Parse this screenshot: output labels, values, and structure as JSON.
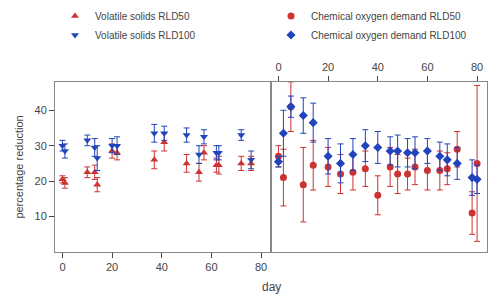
{
  "chart_data": [
    {
      "type": "scatter",
      "ylabel": "percentage reduction",
      "xlabel": "day",
      "xlim": [
        -3,
        84
      ],
      "ylim": [
        0,
        48
      ],
      "xticks": [
        0,
        20,
        40,
        60,
        80
      ],
      "yticks": [
        10,
        20,
        30,
        40
      ],
      "grid": false,
      "legend": "upper left",
      "series": [
        {
          "name": "Volatile solids RLD50",
          "color": "#cc3333",
          "marker": "triangle-up",
          "x": [
            0,
            1,
            10,
            13,
            14,
            20,
            22,
            37,
            41,
            50,
            55,
            57,
            62,
            63,
            72,
            76
          ],
          "values": [
            20.5,
            19.5,
            22.5,
            22.5,
            19.0,
            28.5,
            28.0,
            26.0,
            31.0,
            25.0,
            22.5,
            28.0,
            24.5,
            24.5,
            25.0,
            25.0
          ],
          "error": [
            1.0,
            1.5,
            1.5,
            2.0,
            2.0,
            2.0,
            2.0,
            2.5,
            2.5,
            2.5,
            2.5,
            2.0,
            2.0,
            2.5,
            2.0,
            2.0
          ]
        },
        {
          "name": "Volatile solids RLD100",
          "color": "#2244bb",
          "marker": "triangle-down",
          "x": [
            0,
            1,
            10,
            13,
            14,
            20,
            22,
            37,
            41,
            50,
            55,
            57,
            62,
            63,
            72,
            76
          ],
          "values": [
            30.0,
            28.5,
            31.5,
            29.5,
            26.5,
            30.0,
            30.0,
            33.5,
            33.5,
            33.0,
            27.5,
            32.5,
            28.0,
            28.0,
            33.0,
            26.0
          ],
          "error": [
            1.5,
            2.0,
            1.5,
            2.5,
            3.5,
            2.0,
            2.5,
            2.5,
            2.0,
            2.0,
            2.5,
            2.0,
            2.0,
            2.0,
            1.5,
            2.5
          ]
        }
      ]
    },
    {
      "type": "scatter",
      "xlim": [
        -3,
        84
      ],
      "ylim": [
        0,
        48
      ],
      "xticks": [
        0,
        20,
        40,
        60,
        80
      ],
      "yticks": [
        10,
        20,
        30,
        40
      ],
      "grid": false,
      "tick_labels": "x",
      "series": [
        {
          "name": "Chemical oxygen demand RLD50",
          "color": "#cc3333",
          "marker": "circle",
          "x": [
            0,
            2,
            5,
            10,
            14,
            20,
            25,
            30,
            35,
            40,
            45,
            48,
            52,
            55,
            60,
            65,
            68,
            72,
            78,
            80
          ],
          "values": [
            27.0,
            21.0,
            41.0,
            19.0,
            24.5,
            24.0,
            22.0,
            22.5,
            23.5,
            16.0,
            24.0,
            22.0,
            22.0,
            24.0,
            23.0,
            23.0,
            23.5,
            29.0,
            11.0,
            25.0
          ],
          "error": [
            3.0,
            8.0,
            7.0,
            10.5,
            7.0,
            5.5,
            5.5,
            5.0,
            5.0,
            5.5,
            5.5,
            5.5,
            4.5,
            5.0,
            5.5,
            5.5,
            4.5,
            5.0,
            6.0,
            22.0
          ]
        },
        {
          "name": "Chemical oxygen demand RLD100",
          "color": "#2244bb",
          "marker": "diamond",
          "x": [
            0,
            2,
            5,
            10,
            14,
            20,
            25,
            30,
            35,
            40,
            45,
            48,
            52,
            55,
            60,
            65,
            68,
            72,
            78,
            80
          ],
          "values": [
            25.5,
            33.5,
            41.0,
            38.5,
            36.5,
            27.0,
            25.0,
            27.5,
            30.0,
            29.5,
            28.5,
            28.5,
            28.0,
            28.0,
            28.5,
            27.0,
            26.0,
            25.0,
            21.0,
            20.5
          ],
          "error": [
            1.5,
            6.5,
            3.0,
            5.0,
            5.5,
            5.0,
            5.5,
            4.5,
            4.5,
            4.5,
            4.0,
            4.5,
            4.0,
            4.5,
            3.5,
            4.0,
            4.5,
            4.5,
            5.0,
            4.0
          ]
        }
      ]
    }
  ]
}
